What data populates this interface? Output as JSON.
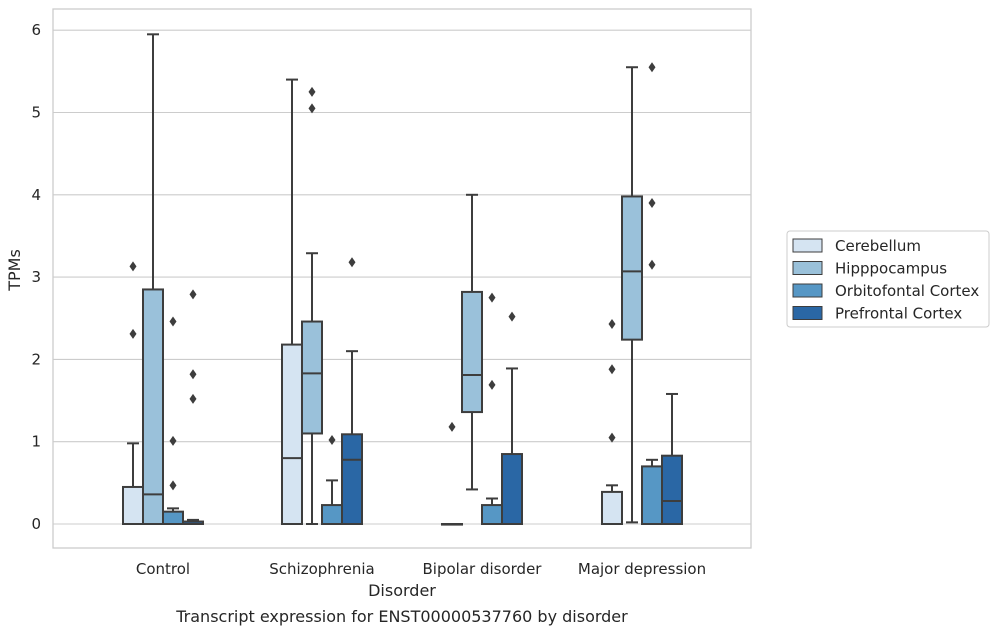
{
  "chart_data": {
    "type": "box",
    "title": "Transcript expression for ENST00000537760 by disorder",
    "xlabel": "Disorder",
    "ylabel": "TPMs",
    "ylim": [
      -0.3,
      6.25
    ],
    "yticks": [
      0,
      1,
      2,
      3,
      4,
      5,
      6
    ],
    "grid": "horizontal",
    "legend_position": "right",
    "categories": [
      "Control",
      "Schizophrenia",
      "Bipolar disorder",
      "Major depression"
    ],
    "series": [
      {
        "name": "Cerebellum",
        "color": "#d5e4f2",
        "boxes": [
          {
            "q1": 0.0,
            "median": 0.0,
            "q3": 0.45,
            "whislo": 0.0,
            "whishi": 0.98,
            "fliers": [
              2.31,
              3.13
            ]
          },
          {
            "q1": 0.0,
            "median": 0.8,
            "q3": 2.18,
            "whislo": 0.0,
            "whishi": 5.4,
            "fliers": []
          },
          {
            "q1": 0.0,
            "median": 0.0,
            "q3": 0.0,
            "whislo": 0.0,
            "whishi": 0.0,
            "fliers": [
              1.18
            ]
          },
          {
            "q1": 0.0,
            "median": 0.0,
            "q3": 0.39,
            "whislo": 0.0,
            "whishi": 0.47,
            "fliers": [
              1.05,
              1.88,
              2.43
            ]
          }
        ]
      },
      {
        "name": "Hipppocampus",
        "color": "#9ac1da",
        "boxes": [
          {
            "q1": 0.0,
            "median": 0.36,
            "q3": 2.85,
            "whislo": 0.0,
            "whishi": 5.95,
            "fliers": []
          },
          {
            "q1": 1.1,
            "median": 1.83,
            "q3": 2.46,
            "whislo": 0.0,
            "whishi": 3.29,
            "fliers": [
              5.05,
              5.25
            ]
          },
          {
            "q1": 1.36,
            "median": 1.81,
            "q3": 2.82,
            "whislo": 0.42,
            "whishi": 4.0,
            "fliers": []
          },
          {
            "q1": 2.24,
            "median": 3.07,
            "q3": 3.98,
            "whislo": 0.02,
            "whishi": 5.55,
            "fliers": []
          }
        ]
      },
      {
        "name": "Orbitofontal Cortex",
        "color": "#5697c5",
        "boxes": [
          {
            "q1": 0.0,
            "median": 0.0,
            "q3": 0.15,
            "whislo": 0.0,
            "whishi": 0.19,
            "fliers": [
              0.47,
              1.01,
              2.46
            ]
          },
          {
            "q1": 0.0,
            "median": 0.0,
            "q3": 0.23,
            "whislo": 0.0,
            "whishi": 0.53,
            "fliers": [
              1.02
            ]
          },
          {
            "q1": 0.0,
            "median": 0.0,
            "q3": 0.23,
            "whislo": 0.0,
            "whishi": 0.31,
            "fliers": [
              1.69,
              2.75
            ]
          },
          {
            "q1": 0.0,
            "median": 0.0,
            "q3": 0.7,
            "whislo": 0.0,
            "whishi": 0.78,
            "fliers": [
              3.15,
              3.9,
              5.55
            ]
          }
        ]
      },
      {
        "name": "Prefrontal Cortex",
        "color": "#2a67a5",
        "boxes": [
          {
            "q1": 0.0,
            "median": 0.0,
            "q3": 0.03,
            "whislo": 0.0,
            "whishi": 0.05,
            "fliers": [
              1.52,
              1.82,
              2.79
            ]
          },
          {
            "q1": 0.0,
            "median": 0.78,
            "q3": 1.09,
            "whislo": 0.0,
            "whishi": 2.1,
            "fliers": [
              3.18
            ]
          },
          {
            "q1": 0.0,
            "median": 0.0,
            "q3": 0.85,
            "whislo": 0.0,
            "whishi": 1.89,
            "fliers": [
              2.52
            ]
          },
          {
            "q1": 0.0,
            "median": 0.28,
            "q3": 0.83,
            "whislo": 0.0,
            "whishi": 1.58,
            "fliers": []
          }
        ]
      }
    ]
  }
}
